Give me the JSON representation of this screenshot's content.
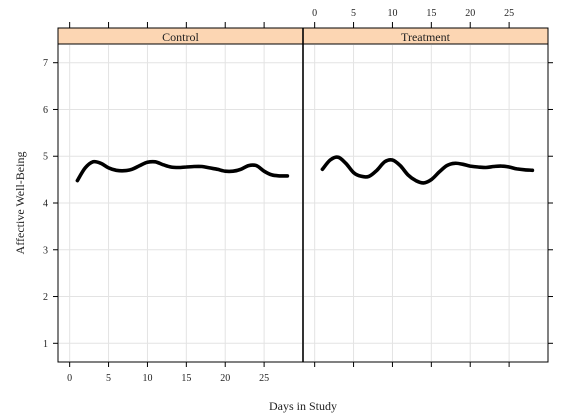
{
  "chart_data": {
    "type": "line",
    "xlabel": "Days in Study",
    "ylabel": "Affective Well-Being",
    "ylim": [
      0.6,
      7.4
    ],
    "yticks": [
      1,
      2,
      3,
      4,
      5,
      6,
      7
    ],
    "xlim": [
      -1.5,
      30
    ],
    "xticks": [
      0,
      5,
      10,
      15,
      20,
      25
    ],
    "grid": true,
    "colors": {
      "strip": "#fcd6b3",
      "line": "#000000",
      "grid": "#e3e3e3"
    },
    "panels": [
      {
        "name": "Control",
        "x": [
          1,
          2,
          3,
          4,
          5,
          6,
          7,
          8,
          9,
          10,
          11,
          12,
          13,
          14,
          15,
          16,
          17,
          18,
          19,
          20,
          21,
          22,
          23,
          24,
          25,
          26,
          27,
          28
        ],
        "y": [
          4.48,
          4.75,
          4.88,
          4.85,
          4.75,
          4.7,
          4.69,
          4.72,
          4.8,
          4.87,
          4.88,
          4.82,
          4.77,
          4.76,
          4.77,
          4.78,
          4.78,
          4.75,
          4.72,
          4.68,
          4.68,
          4.72,
          4.8,
          4.8,
          4.68,
          4.6,
          4.58,
          4.58
        ]
      },
      {
        "name": "Treatment",
        "x": [
          1,
          2,
          3,
          4,
          5,
          6,
          7,
          8,
          9,
          10,
          11,
          12,
          13,
          14,
          15,
          16,
          17,
          18,
          19,
          20,
          21,
          22,
          23,
          24,
          25,
          26,
          27,
          28
        ],
        "y": [
          4.72,
          4.92,
          4.98,
          4.85,
          4.65,
          4.57,
          4.57,
          4.7,
          4.88,
          4.92,
          4.8,
          4.6,
          4.48,
          4.43,
          4.5,
          4.66,
          4.8,
          4.85,
          4.83,
          4.79,
          4.77,
          4.76,
          4.78,
          4.79,
          4.77,
          4.73,
          4.71,
          4.7
        ]
      }
    ]
  }
}
